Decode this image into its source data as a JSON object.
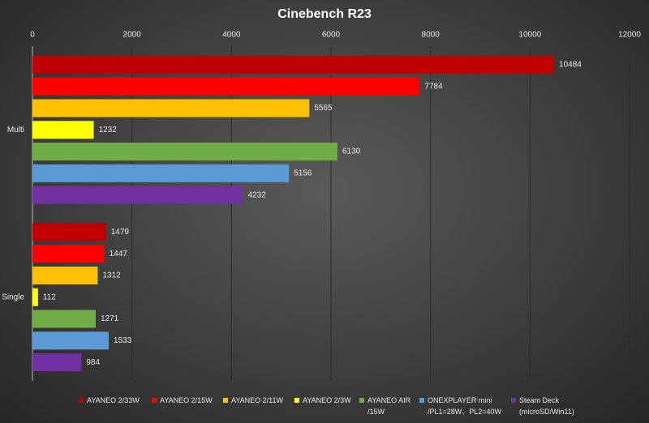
{
  "chart_data": {
    "type": "bar",
    "orientation": "horizontal",
    "title": "Cinebench R23",
    "categories": [
      "Multi",
      "Single"
    ],
    "series": [
      {
        "name": "AYANEO 2/33W",
        "color": "#c00000",
        "values": [
          10484,
          1479
        ]
      },
      {
        "name": "AYANEO 2/15W",
        "color": "#ff0000",
        "values": [
          7784,
          1447
        ]
      },
      {
        "name": "AYANEO 2/11W",
        "color": "#ffc000",
        "values": [
          5565,
          1312
        ]
      },
      {
        "name": "AYANEO 2/3W",
        "color": "#ffff00",
        "values": [
          1232,
          112
        ]
      },
      {
        "name": "AYANEO AIR\n/15W",
        "color": "#70ad47",
        "values": [
          6130,
          1271
        ]
      },
      {
        "name": "ONEXPLAYER mini\n/PL1=28W、PL2=40W",
        "color": "#5b9bd5",
        "values": [
          5156,
          1533
        ]
      },
      {
        "name": "Steam Deck\n(microSD/Win11)",
        "color": "#7030a0",
        "values": [
          4232,
          984
        ]
      }
    ],
    "xlim": [
      0,
      12000
    ],
    "xticks": [
      0,
      2000,
      4000,
      6000,
      8000,
      10000,
      12000
    ],
    "grid": true
  }
}
